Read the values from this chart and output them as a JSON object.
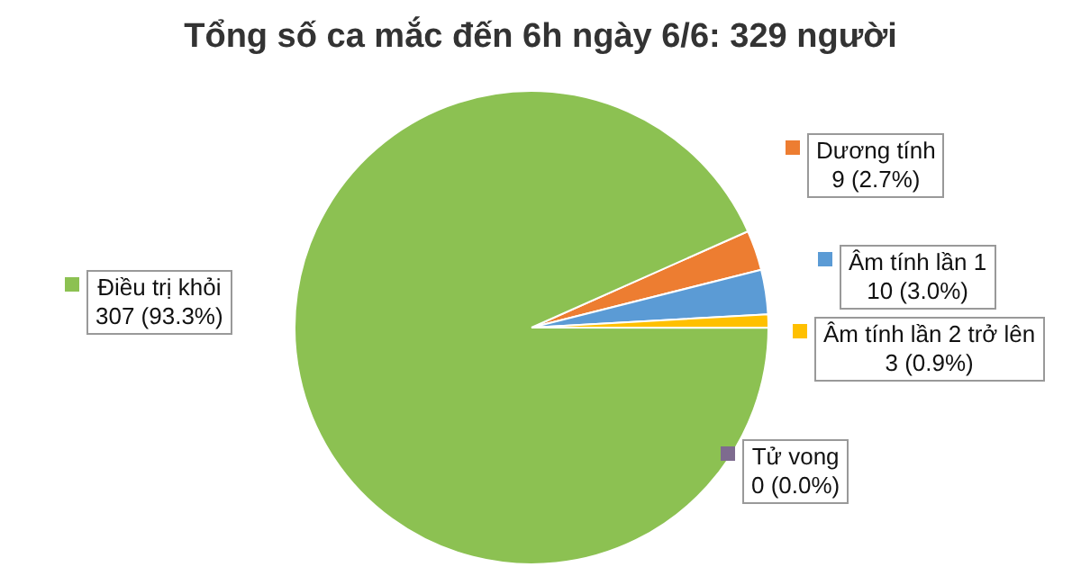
{
  "chart_data": {
    "type": "pie",
    "title": "Tổng số ca mắc đến 6h ngày 6/6: 329 người",
    "categories": [
      "Dương tính",
      "Âm tính lần 1",
      "Âm tính lần 2 trở lên",
      "Tử vong",
      "Điều trị khỏi"
    ],
    "values": [
      9,
      10,
      3,
      0,
      307
    ],
    "value_labels": [
      "9 (2.7%)",
      "10 (3.0%)",
      "3 (0.9%)",
      "0 (0.0%)",
      "307 (93.3%)"
    ],
    "colors": [
      "#ed7d31",
      "#5b9bd5",
      "#ffc000",
      "#7e6b8f",
      "#8cc152"
    ],
    "legend": "right"
  }
}
